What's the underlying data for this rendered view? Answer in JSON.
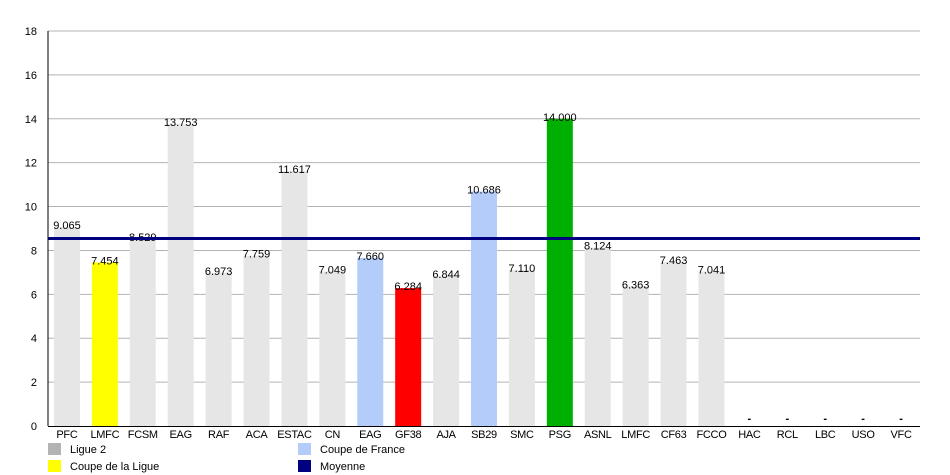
{
  "chart_data": {
    "type": "bar",
    "title": "",
    "xlabel": "",
    "ylabel": "",
    "ylim": [
      0,
      18
    ],
    "yticks": [
      0,
      2,
      4,
      6,
      8,
      10,
      12,
      14,
      16,
      18
    ],
    "grid": true,
    "legend_placement": "bottom",
    "categories": [
      "PFC",
      "LMFC",
      "FCSM",
      "EAG",
      "RAF",
      "ACA",
      "ESTAC",
      "CN",
      "EAG",
      "GF38",
      "AJA",
      "SB29",
      "SMC",
      "PSG",
      "ASNL",
      "LMFC",
      "CF63",
      "FCCO",
      "HAC",
      "RCL",
      "LBC",
      "USO",
      "VFC"
    ],
    "values": [
      9.065,
      7.454,
      8.529,
      13.753,
      6.973,
      7.759,
      11.617,
      7.049,
      7.66,
      6.284,
      6.844,
      10.686,
      7.11,
      14.0,
      8.124,
      6.363,
      7.463,
      7.041,
      null,
      null,
      null,
      null,
      null
    ],
    "value_labels": [
      "9.065",
      "7.454",
      "8.529",
      "13.753",
      "6.973",
      "7.759",
      "11.617",
      "7.049",
      "7.660",
      "6.284",
      "6.844",
      "10.686",
      "7.110",
      "14.000",
      "8.124",
      "6.363",
      "7.463",
      "7.041",
      "-",
      "-",
      "-",
      "-",
      "-"
    ],
    "bar_colors": [
      "#e6e6e6",
      "#ffff00",
      "#e6e6e6",
      "#e6e6e6",
      "#e6e6e6",
      "#e6e6e6",
      "#e6e6e6",
      "#e6e6e6",
      "#b4ccfa",
      "#ff0000",
      "#e6e6e6",
      "#b4ccfa",
      "#e6e6e6",
      "#00b000",
      "#e6e6e6",
      "#e6e6e6",
      "#e6e6e6",
      "#e6e6e6",
      "#e6e6e6",
      "#e6e6e6",
      "#e6e6e6",
      "#e6e6e6",
      "#e6e6e6"
    ],
    "average": {
      "name": "Moyenne",
      "value": 8.543,
      "color": "#000080"
    },
    "legend": [
      {
        "label": "Ligue 2",
        "color": "#b3b3b3"
      },
      {
        "label": "Coupe de France",
        "color": "#b4ccfa"
      },
      {
        "label": "Coupe de la Ligue",
        "color": "#ffff00"
      },
      {
        "label": "Moyenne",
        "color": "#000080"
      }
    ]
  }
}
